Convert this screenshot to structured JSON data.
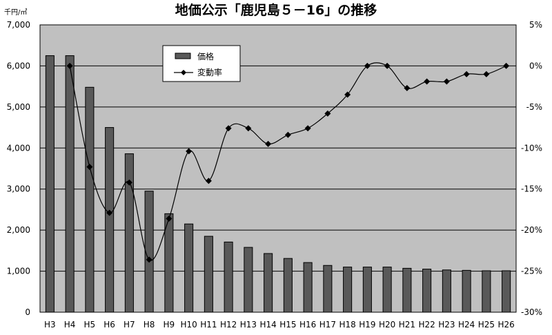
{
  "chart_data": {
    "type": "bar",
    "title": "地価公示「鹿児島５－16」の推移",
    "y_unit": "千円/㎡",
    "categories": [
      "H3",
      "H4",
      "H5",
      "H6",
      "H7",
      "H8",
      "H9",
      "H10",
      "H11",
      "H12",
      "H13",
      "H14",
      "H15",
      "H16",
      "H17",
      "H18",
      "H19",
      "H20",
      "H21",
      "H22",
      "H23",
      "H24",
      "H25",
      "H26"
    ],
    "series": [
      {
        "name": "価格",
        "type": "bar",
        "axis": "left",
        "values": [
          6250,
          6250,
          5480,
          4500,
          3860,
          2950,
          2400,
          2150,
          1850,
          1710,
          1580,
          1430,
          1310,
          1210,
          1140,
          1100,
          1100,
          1100,
          1070,
          1050,
          1030,
          1020,
          1010,
          1010
        ]
      },
      {
        "name": "変動率",
        "type": "line",
        "axis": "right",
        "values": [
          null,
          0.0,
          -12.3,
          -17.9,
          -14.2,
          -23.6,
          -18.6,
          -10.4,
          -14.0,
          -7.6,
          -7.6,
          -9.5,
          -8.4,
          -7.6,
          -5.8,
          -3.5,
          0.0,
          0.0,
          -2.7,
          -1.9,
          -1.9,
          -1.0,
          -1.0,
          0.0
        ]
      }
    ],
    "ylim": [
      0,
      7000
    ],
    "yticks": [
      "0",
      "1,000",
      "2,000",
      "3,000",
      "4,000",
      "5,000",
      "6,000",
      "7,000"
    ],
    "y2lim": [
      -30,
      5
    ],
    "y2ticks": [
      "-30%",
      "-25%",
      "-20%",
      "-15%",
      "-10%",
      "-5%",
      "0%",
      "5%"
    ],
    "legend": {
      "position": "top-left-inside",
      "items": [
        "価格",
        "変動率"
      ]
    },
    "grid": true,
    "colors": {
      "plot_background": "#c0c0c0",
      "bar_fill": "#595959",
      "bar_stroke": "#000000",
      "line": "#000000",
      "gridline": "#000000"
    }
  }
}
